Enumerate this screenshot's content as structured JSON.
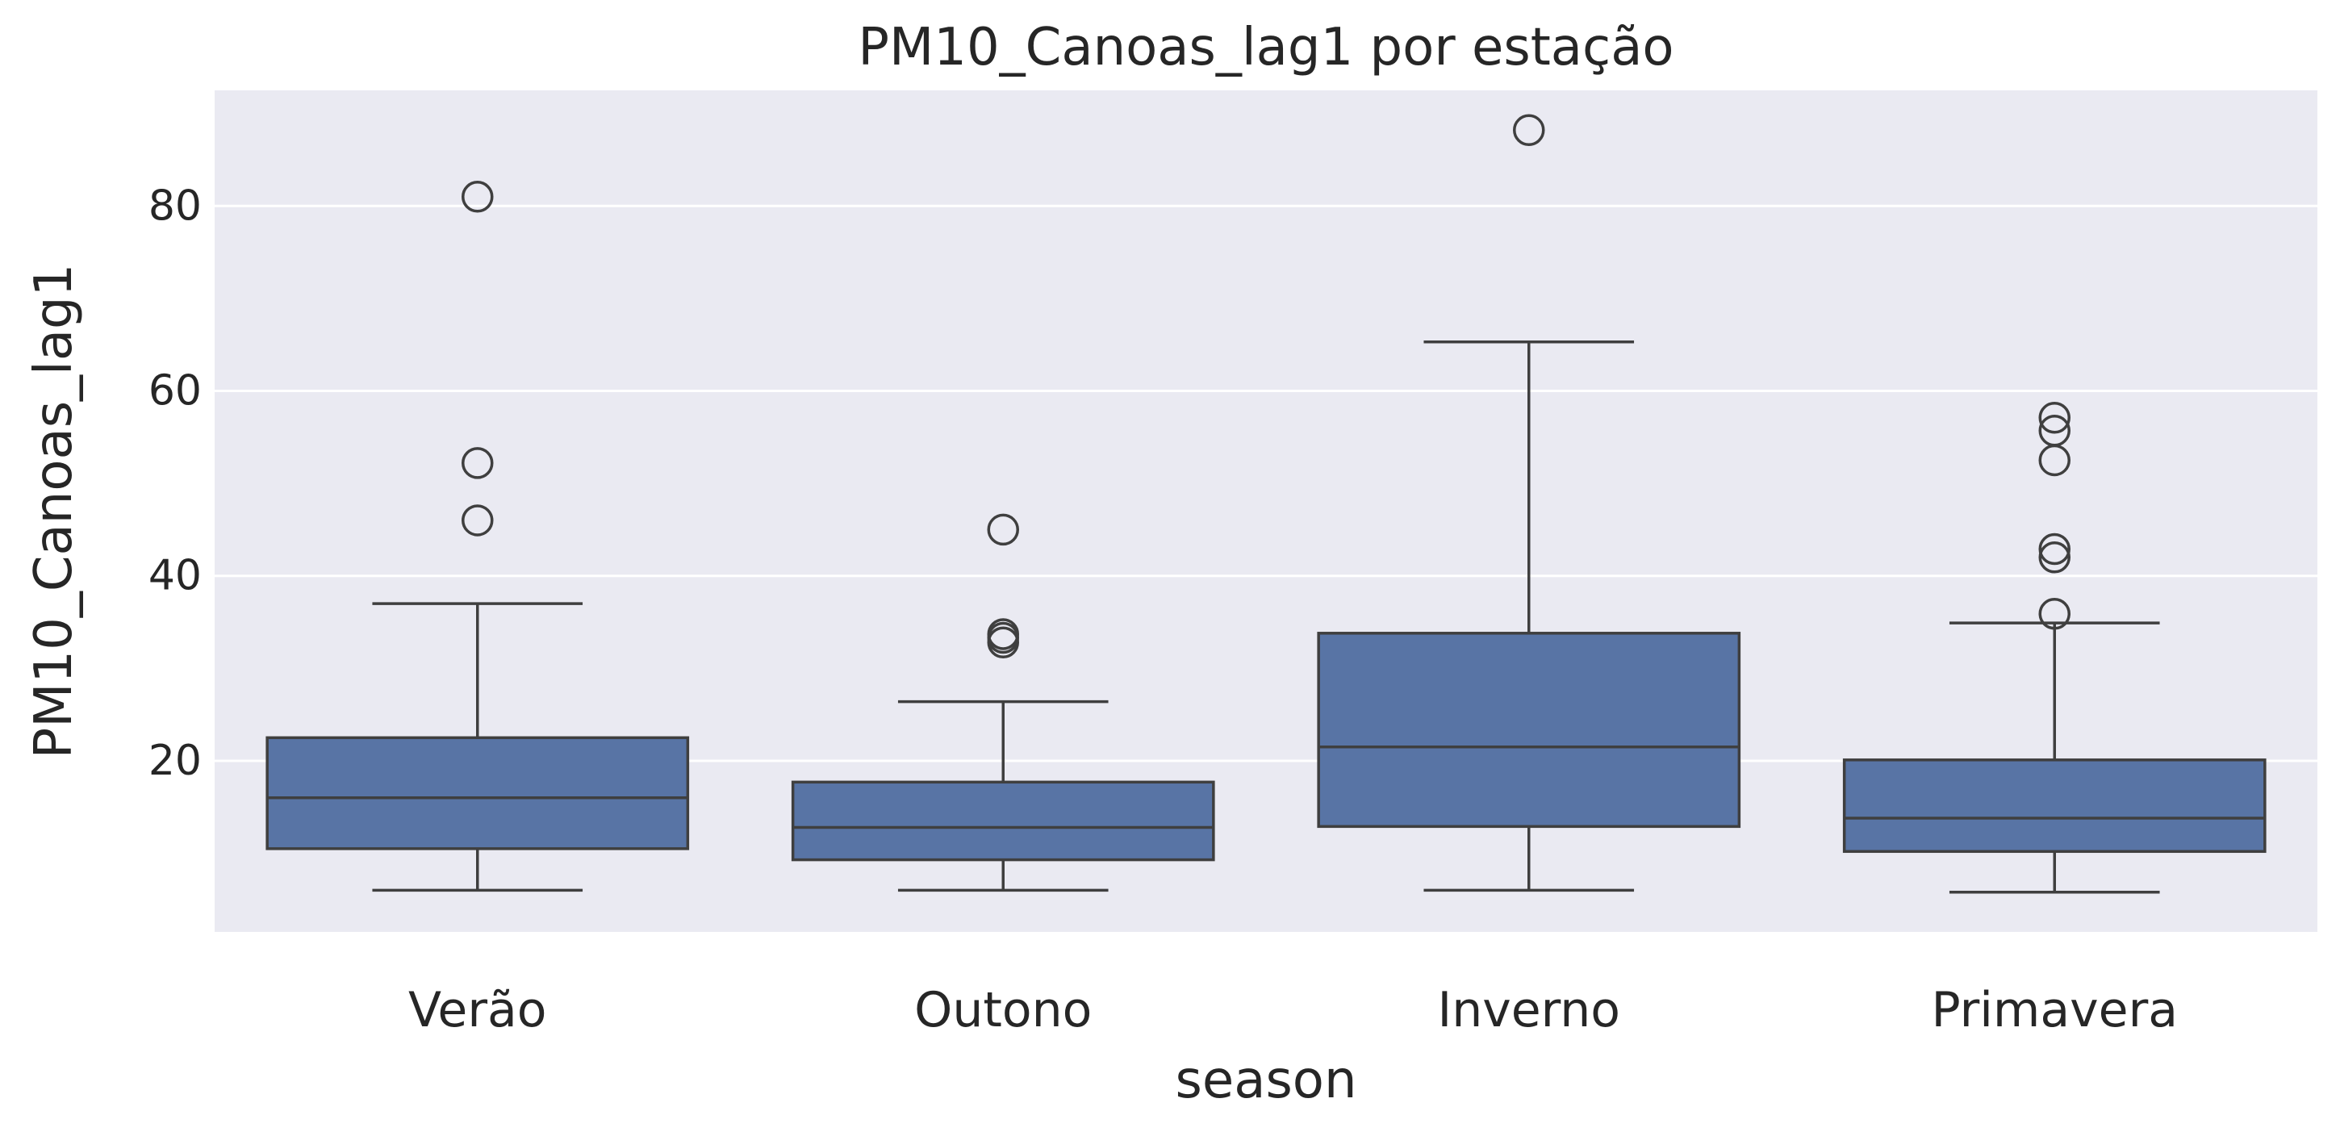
{
  "chart_data": {
    "type": "box",
    "title": "PM10_Canoas_lag1 por estação",
    "xlabel": "season",
    "ylabel": "PM10_Canoas_lag1",
    "ylim": [
      1.5,
      92.5
    ],
    "yticks": [
      20,
      40,
      60,
      80
    ],
    "grid": true,
    "legend": "none",
    "categories": [
      "Verão",
      "Outono",
      "Inverno",
      "Primavera"
    ],
    "boxes": [
      {
        "category": "Verão",
        "whisker_low": 6.0,
        "q1": 10.5,
        "median": 16.0,
        "q3": 22.5,
        "whisker_high": 37.0,
        "outliers": [
          46.0,
          52.2,
          81.0
        ]
      },
      {
        "category": "Outono",
        "whisker_low": 6.0,
        "q1": 9.3,
        "median": 12.8,
        "q3": 17.7,
        "whisker_high": 26.4,
        "outliers": [
          32.8,
          33.3,
          33.7,
          45.0
        ]
      },
      {
        "category": "Inverno",
        "whisker_low": 6.0,
        "q1": 12.9,
        "median": 21.5,
        "q3": 33.8,
        "whisker_high": 65.3,
        "outliers": [
          88.2
        ]
      },
      {
        "category": "Primavera",
        "whisker_low": 5.8,
        "q1": 10.2,
        "median": 13.8,
        "q3": 20.1,
        "whisker_high": 34.9,
        "outliers": [
          35.9,
          42.0,
          42.9,
          52.5,
          55.7,
          57.1
        ]
      }
    ],
    "colors": {
      "box_fill": "#5874a5",
      "line": "#3f3f3f",
      "plot_background": "#eaeaf2",
      "grid": "#ffffff",
      "text": "#262626"
    }
  }
}
